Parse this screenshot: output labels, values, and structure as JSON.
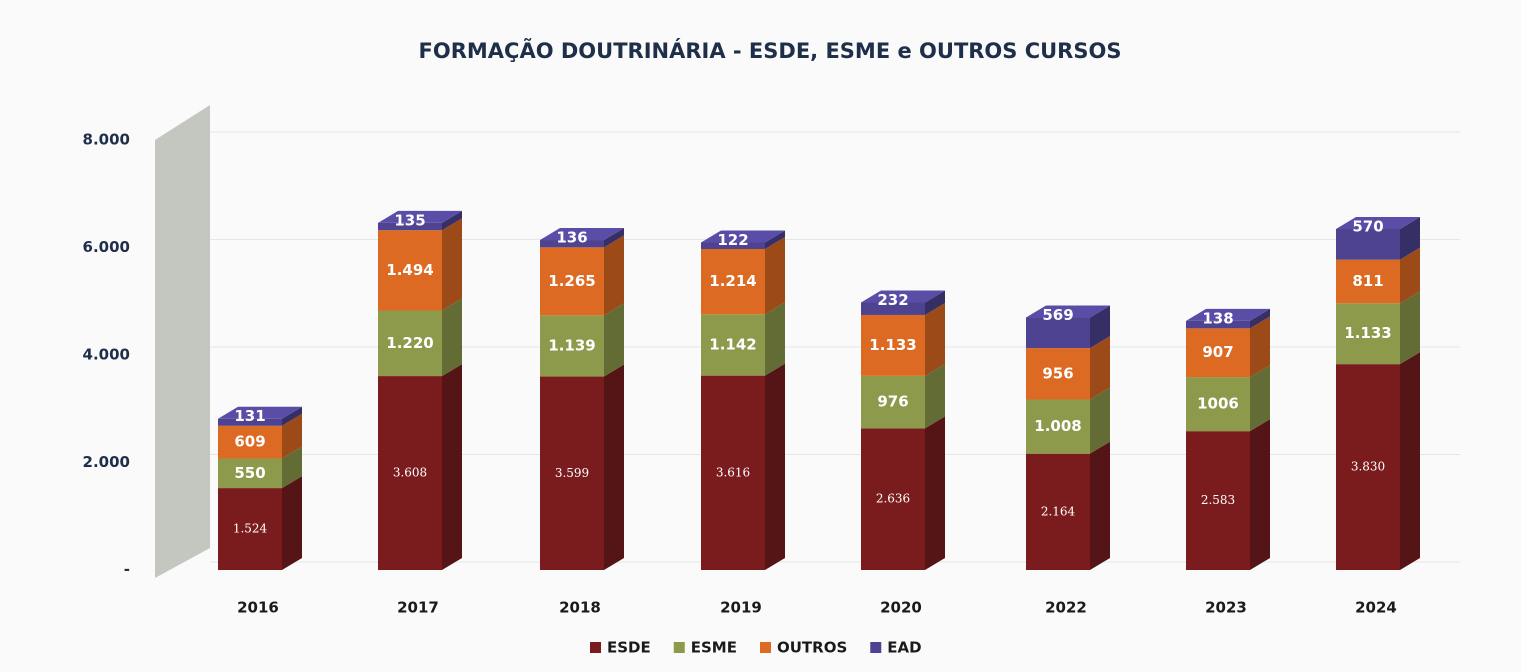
{
  "chart_data": {
    "type": "bar3d_stacked",
    "title": "FORMAÇÃO DOUTRINÁRIA - ESDE, ESME e OUTROS CURSOS",
    "categories": [
      "2016",
      "2017",
      "2018",
      "2019",
      "2020",
      "2022",
      "2023",
      "2024"
    ],
    "series": [
      {
        "name": "ESDE",
        "color": "#7a1c1e",
        "values": [
          1524,
          3608,
          3599,
          3616,
          2636,
          2164,
          2583,
          3830
        ],
        "value_labels": [
          "1.524",
          "3.608",
          "3.599",
          "3.616",
          "2.636",
          "2.164",
          "2.583",
          "3.830"
        ]
      },
      {
        "name": "ESME",
        "color": "#8d9a4c",
        "values": [
          550,
          1220,
          1139,
          1142,
          976,
          1008,
          1006,
          1133
        ],
        "value_labels": [
          "550",
          "1.220",
          "1.139",
          "1.142",
          "976",
          "1.008",
          "1006",
          "1.133"
        ]
      },
      {
        "name": "OUTROS",
        "color": "#dd6a22",
        "values": [
          609,
          1494,
          1265,
          1214,
          1133,
          956,
          907,
          811
        ],
        "value_labels": [
          "609",
          "1.494",
          "1.265",
          "1.214",
          "1.133",
          "956",
          "907",
          "811"
        ]
      },
      {
        "name": "EAD",
        "color": "#4d4391",
        "values": [
          131,
          135,
          136,
          122,
          232,
          569,
          138,
          570
        ]
      }
    ],
    "ylim": [
      0,
      8000
    ],
    "yticks": [
      {
        "value": 0,
        "label": "-"
      },
      {
        "value": 2000,
        "label": "2.000"
      },
      {
        "value": 4000,
        "label": "4.000"
      },
      {
        "value": 6000,
        "label": "6.000"
      },
      {
        "value": 8000,
        "label": "8.000"
      }
    ],
    "grid": true,
    "legend": "bottom"
  }
}
